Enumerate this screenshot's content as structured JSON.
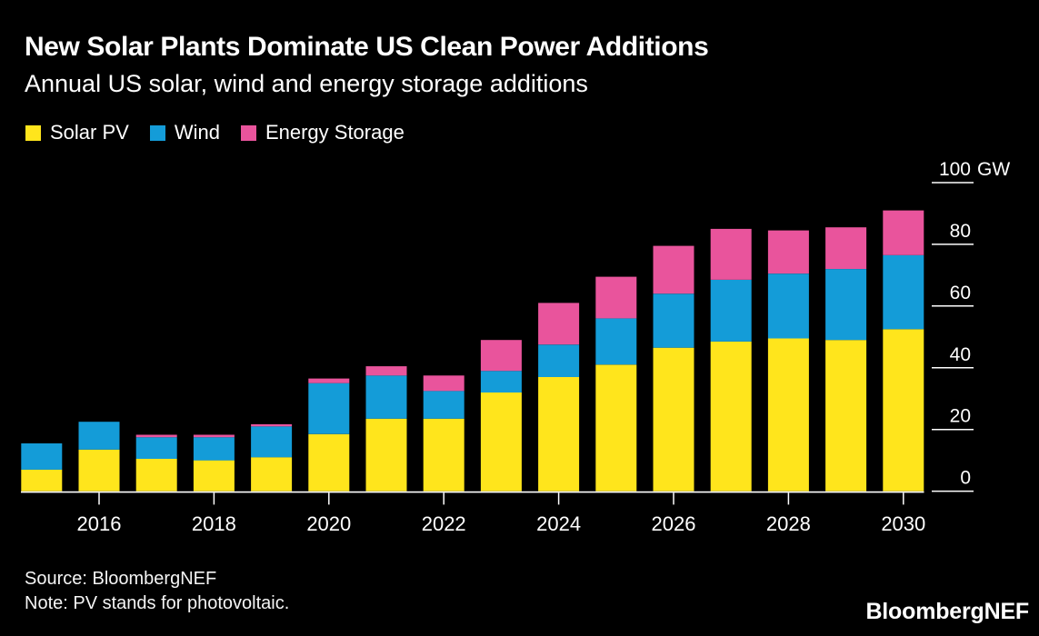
{
  "header": {
    "title": "New Solar Plants Dominate US Clean Power Additions",
    "subtitle": "Annual US solar, wind and energy storage additions"
  },
  "footer": {
    "source": "Source: BloombergNEF",
    "note": "Note: PV stands for photovoltaic."
  },
  "branding": {
    "logo": "BloombergNEF"
  },
  "chart_data": {
    "type": "bar",
    "stacked": true,
    "title": "New Solar Plants Dominate US Clean Power Additions",
    "subtitle": "Annual US solar, wind and energy storage additions",
    "unit": "GW",
    "background_color": "#000000",
    "legend_position": "top-left",
    "categories": [
      "2015",
      "2016",
      "2017",
      "2018",
      "2019",
      "2020",
      "2021",
      "2022",
      "2023",
      "2024",
      "2025",
      "2026",
      "2027",
      "2028",
      "2029",
      "2030"
    ],
    "series": [
      {
        "name": "Solar PV",
        "color": "#FFE51C",
        "values": [
          7,
          13.5,
          10.5,
          10,
          11,
          18.5,
          23.5,
          23.5,
          32,
          37,
          41,
          46.5,
          48.5,
          49.5,
          49,
          52.5
        ]
      },
      {
        "name": "Wind",
        "color": "#149CD8",
        "values": [
          8.5,
          9,
          7,
          7.5,
          10,
          16.5,
          14,
          9,
          7,
          10.5,
          15,
          17.5,
          20,
          21,
          23,
          24
        ]
      },
      {
        "name": "Energy Storage",
        "color": "#E9549C",
        "values": [
          0,
          0,
          0.8,
          0.8,
          0.7,
          1.5,
          3,
          5,
          10,
          13.5,
          13.5,
          15.5,
          16.5,
          14,
          13.5,
          14.5
        ]
      }
    ],
    "y_axis": {
      "side": "right",
      "range": [
        0,
        100
      ],
      "ticks": [
        0,
        20,
        40,
        60,
        80,
        100
      ],
      "tick_labels": [
        "0",
        "20",
        "40",
        "60",
        "80",
        "100"
      ],
      "unit_label": "GW",
      "grid": false
    },
    "x_axis": {
      "tick_labels": [
        "2016",
        "2018",
        "2020",
        "2022",
        "2024",
        "2026",
        "2028",
        "2030"
      ],
      "ticks_under_every_other_bar": true
    }
  }
}
